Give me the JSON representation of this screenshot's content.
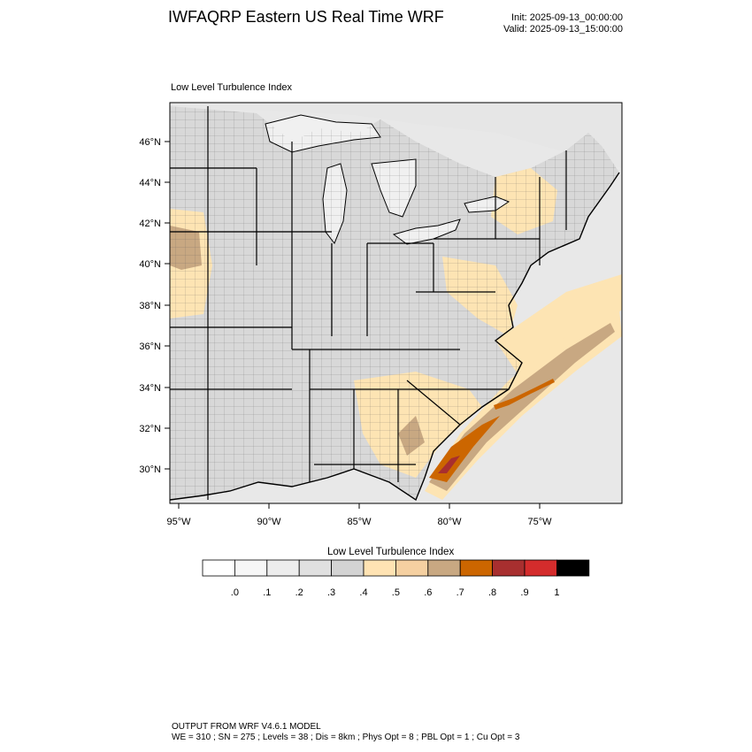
{
  "header": {
    "title": "IWFAQRP Eastern US Real Time WRF",
    "init": "Init: 2025-09-13_00:00:00",
    "valid": "Valid: 2025-09-13_15:00:00"
  },
  "map": {
    "subtitle": "Low Level Turbulence Index",
    "lat_labels": [
      "46°N",
      "44°N",
      "42°N",
      "40°N",
      "38°N",
      "36°N",
      "34°N",
      "32°N",
      "30°N"
    ],
    "lon_labels": [
      "95°W",
      "90°W",
      "85°W",
      "80°W",
      "75°W"
    ],
    "colors": {
      "land_gray": "#d9d9d9",
      "water": "#f0f0f0",
      "ocean": "#e4e4e4",
      "light_orange": "#fde4b3",
      "tan": "#c8a882",
      "orange": "#cc6600",
      "red": "#a82f2f"
    }
  },
  "colorbar": {
    "title": "Low Level Turbulence Index",
    "colors": [
      "#ffffff",
      "#f7f7f7",
      "#ededed",
      "#e0e0e0",
      "#d3d3d3",
      "#ffe3b3",
      "#f5d0a1",
      "#c8a882",
      "#cc6600",
      "#a82f2f",
      "#d42c2c",
      "#000000"
    ],
    "tick_labels": [
      ".0",
      ".1",
      ".2",
      ".3",
      ".4",
      ".5",
      ".6",
      ".7",
      ".8",
      ".9",
      "1"
    ]
  },
  "footer": {
    "line1": "OUTPUT FROM WRF V4.6.1 MODEL",
    "line2": "WE = 310 ; SN = 275 ; Levels = 38 ; Dis = 8km ; Phys Opt = 8 ; PBL Opt = 1 ; Cu Opt = 3"
  }
}
